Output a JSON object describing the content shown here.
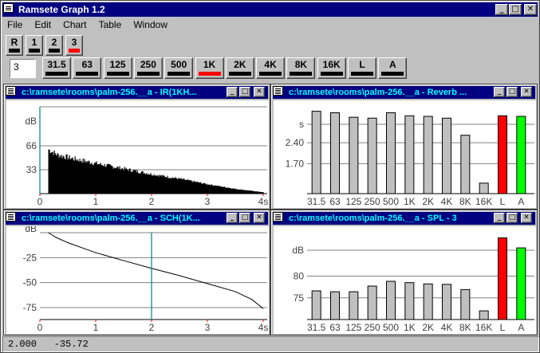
{
  "app": {
    "title": "Ramsete Graph 1.2"
  },
  "menu": [
    "File",
    "Edit",
    "Chart",
    "Table",
    "Window"
  ],
  "channel_buttons": [
    {
      "label": "R",
      "active": false
    },
    {
      "label": "1",
      "active": false
    },
    {
      "label": "2",
      "active": false
    },
    {
      "label": "3",
      "active": true
    }
  ],
  "channel_value": "3",
  "band_buttons": [
    {
      "label": "31.5",
      "active": false
    },
    {
      "label": "63",
      "active": false
    },
    {
      "label": "125",
      "active": false
    },
    {
      "label": "250",
      "active": false
    },
    {
      "label": "500",
      "active": false
    },
    {
      "label": "1K",
      "active": true
    },
    {
      "label": "2K",
      "active": false
    },
    {
      "label": "4K",
      "active": false
    },
    {
      "label": "8K",
      "active": false
    },
    {
      "label": "16K",
      "active": false
    },
    {
      "label": "L",
      "active": false
    },
    {
      "label": "A",
      "active": false
    }
  ],
  "windows": {
    "ir": {
      "title": "c:\\ramsete\\rooms\\palm-256.__a - IR(1KH..."
    },
    "reverb": {
      "title": "c:\\ramsete\\rooms\\palm-256.__a - Reverb ..."
    },
    "sch": {
      "title": "c:\\ramsete\\rooms\\palm-256.__a - SCH(1K..."
    },
    "spl": {
      "title": "c:\\ramsete\\rooms\\palm-256.__a - SPL - 3"
    }
  },
  "status": {
    "x": "2.000",
    "y": "-35.72"
  },
  "chart_data": [
    {
      "type": "bar",
      "name": "ir",
      "ylabel": "dB",
      "ylim": [
        0,
        120
      ],
      "yticks": [
        "66",
        "33"
      ],
      "ytick_values": [
        66,
        33
      ],
      "xlim": [
        0,
        4
      ],
      "xticks": [
        "0",
        "1",
        "2",
        "3",
        "4s"
      ],
      "envelope": [
        [
          0.15,
          66
        ],
        [
          0.3,
          58
        ],
        [
          0.6,
          52
        ],
        [
          1.0,
          45
        ],
        [
          1.5,
          37
        ],
        [
          2.0,
          29
        ],
        [
          2.5,
          22
        ],
        [
          3.0,
          14
        ],
        [
          3.5,
          7
        ],
        [
          4.0,
          2
        ]
      ],
      "cursor_x": 0,
      "grid": true
    },
    {
      "type": "bar",
      "name": "reverb",
      "ylabel": "s",
      "yticks": [
        "2.40",
        "1.70"
      ],
      "ytick_values": [
        2.4,
        1.7
      ],
      "ylim": [
        0.7,
        3.6
      ],
      "categories": [
        "31.5",
        "63",
        "125",
        "250",
        "500",
        "1K",
        "2K",
        "4K",
        "8K",
        "16K",
        "L",
        "A"
      ],
      "values": [
        3.45,
        3.4,
        3.25,
        3.22,
        3.4,
        3.3,
        3.28,
        3.22,
        2.65,
        1.05,
        3.3,
        3.28
      ],
      "colors": [
        "#c0c0c0",
        "#c0c0c0",
        "#c0c0c0",
        "#c0c0c0",
        "#c0c0c0",
        "#c0c0c0",
        "#c0c0c0",
        "#c0c0c0",
        "#c0c0c0",
        "#c0c0c0",
        "#ff0000",
        "#00ff00"
      ],
      "grid": true
    },
    {
      "type": "line",
      "name": "sch",
      "ylabel": "dB",
      "yticks": [
        "-25",
        "-50",
        "-75"
      ],
      "ytick_values": [
        -25,
        -50,
        -75
      ],
      "ylim": [
        -87,
        0
      ],
      "xlim": [
        0,
        4
      ],
      "xticks": [
        "0",
        "1",
        "2",
        "3",
        "4s"
      ],
      "points": [
        [
          0.15,
          0
        ],
        [
          0.3,
          -5
        ],
        [
          0.5,
          -10
        ],
        [
          0.8,
          -16
        ],
        [
          1.0,
          -20
        ],
        [
          1.5,
          -28
        ],
        [
          2.0,
          -35.72
        ],
        [
          2.5,
          -43
        ],
        [
          3.0,
          -51
        ],
        [
          3.5,
          -59
        ],
        [
          3.8,
          -67
        ],
        [
          4.0,
          -76
        ]
      ],
      "cursor_x": 2.0,
      "grid": true
    },
    {
      "type": "bar",
      "name": "spl",
      "ylabel": "dB",
      "yticks": [
        "80",
        "75"
      ],
      "ytick_values": [
        80,
        75
      ],
      "ylim": [
        70,
        90
      ],
      "categories": [
        "31.5",
        "63",
        "125",
        "250",
        "500",
        "1K",
        "2K",
        "4K",
        "8K",
        "16K",
        "L",
        "A"
      ],
      "values": [
        76.6,
        76.4,
        76.4,
        77.7,
        78.8,
        78.5,
        78.2,
        78.1,
        76.9,
        72.0,
        88.8,
        86.5
      ],
      "colors": [
        "#c0c0c0",
        "#c0c0c0",
        "#c0c0c0",
        "#c0c0c0",
        "#c0c0c0",
        "#c0c0c0",
        "#c0c0c0",
        "#c0c0c0",
        "#c0c0c0",
        "#c0c0c0",
        "#ff0000",
        "#00ff00"
      ],
      "grid": true
    }
  ]
}
